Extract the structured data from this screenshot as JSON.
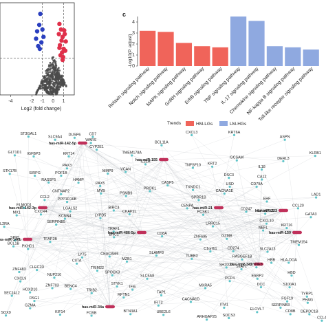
{
  "chart_data": [
    {
      "type": "scatter",
      "panel": "",
      "xlabel": "Log2 (fold change)",
      "ylabel": "",
      "xticks": [
        -4,
        -2,
        -1,
        0,
        1
      ],
      "xlim": [
        -5,
        2
      ],
      "ylim": [
        0,
        10
      ],
      "threshold_x": [
        -1,
        1
      ],
      "threshold_y": 4,
      "colors": {
        "up": "#e0304a",
        "down": "#2a3fbf",
        "ns": "#4a4a4a"
      },
      "series": [
        {
          "group": "down",
          "x": [
            -1.2,
            -1.5,
            -1.3,
            -0.9,
            -1.1,
            -1.6,
            -1.4,
            -1.0,
            -1.25
          ],
          "y": [
            8.8,
            6.9,
            7.6,
            6.3,
            5.7,
            6.1,
            5.3,
            7.1,
            5.0
          ]
        },
        {
          "group": "up",
          "x": [
            0.6,
            0.75,
            1.05,
            0.9,
            0.55,
            1.2,
            0.8,
            1.0,
            0.65,
            1.15,
            0.85,
            0.7,
            0.95,
            1.1,
            0.6,
            0.9
          ],
          "y": [
            7.7,
            7.1,
            7.0,
            6.3,
            6.6,
            5.8,
            5.9,
            5.0,
            5.4,
            4.8,
            4.6,
            4.3,
            4.1,
            6.6,
            5.1,
            3.8
          ]
        }
      ]
    },
    {
      "type": "bar",
      "panel": "c",
      "ylabel": "-Log10(P. adjust)",
      "ylim": [
        0,
        4.5
      ],
      "yticks": [
        0,
        1,
        2,
        3,
        4
      ],
      "categories": [
        "Relaxin signaling pathway",
        "Notch signaling pathway",
        "MAPK signaling pathway",
        "GnRH signaling pathway",
        "ErbB signaling pathway",
        "TNF signaling pathway",
        "IL-17 signaling pathway",
        "Chemokine signaling pathway",
        "NF-kappa B signaling pathway",
        "Toll-like receptor signaling pathway"
      ],
      "values": [
        3.2,
        3.1,
        2.1,
        1.8,
        1.7,
        4.5,
        4.1,
        1.8,
        1.7,
        1.5
      ],
      "groups": [
        "HM-LGs",
        "HM-LGs",
        "HM-LGs",
        "HM-LGs",
        "HM-LGs",
        "LM-HGs",
        "LM-HGs",
        "LM-HGs",
        "LM-HGs",
        "LM-HGs"
      ],
      "legend": {
        "title": "Trends",
        "items": [
          {
            "name": "HM-LGs",
            "color": "#f0645a"
          },
          {
            "name": "LM-HGs",
            "color": "#8fa9e0"
          }
        ],
        "placement": "bottom"
      }
    },
    {
      "type": "network",
      "panel": "",
      "hub_color": "#c0305a",
      "node_color": "#5fc5c9",
      "hubs": [
        "has-miR-142-5p",
        "has-miR-142-3p",
        "has-miR-146b",
        "has-miR-155",
        "has-miR-21",
        "has-miR-486-5p",
        "has-miR-223",
        "has-miR-150",
        "has-miR-34a",
        "has-miR-342"
      ],
      "genes": [
        "DERL3",
        "TAP1",
        "USD",
        "STYK1",
        "CASP5",
        "C1orf61",
        "TXNDC1",
        "CD8B",
        "BENC4",
        "TYRP1",
        "POF1B",
        "CCL2",
        "ITM1",
        "SEC14L2",
        "BCL11A",
        "MX1",
        "CXCL3",
        "CKAP2L",
        "LYPD5",
        "DSC3",
        "SOX9",
        "SYNE3",
        "CCL20",
        "PPP1R16B",
        "ZNF483",
        "CCL4",
        "KCNN4",
        "CENPA",
        "CD247",
        "BCL1B",
        "HAMP",
        "TMEM154",
        "ASPN",
        "RASGEF1B",
        "KRT6A",
        "SPOCK3",
        "IFIT2",
        "STK17B",
        "MXRA5",
        "DSG1",
        "PROK1",
        "CD79A",
        "BIRC3",
        "FOSB",
        "KLRB1",
        "ZNF695",
        "GZMA",
        "ELOVL7",
        "CLEC2D",
        "GALNT13",
        "FGF19",
        "CXCR4",
        "ST3GAL1",
        "SERPINB3",
        "CEACAM6",
        "KRT14",
        "IL18",
        "GATA3",
        "SLAMF8",
        "DUSP6",
        "ELMOD1",
        "CACNA1E",
        "SH2D2A",
        "CXCL9",
        "PAX3",
        "SLC9A4",
        "MZB1",
        "CD274",
        "LY75",
        "IGFBP3",
        "SPP1",
        "TNFSF10",
        "PCSK1",
        "NUP210",
        "STAT1",
        "LGALS2",
        "GZMB",
        "HOXD10",
        "PAX5",
        "MMP9",
        "TUBB3",
        "ESRP2",
        "GLT1D1",
        "HBD",
        "DEPDC1B",
        "HBB",
        "CXCL10",
        "TRAF1",
        "CYP2E1",
        "GCSAM",
        "PHAG",
        "LAD1",
        "SERPINB5",
        "RASSF5",
        "LRRC15",
        "BNC2",
        "PKHD1",
        "CD7",
        "CIITA",
        "IL21R",
        "S100A1",
        "TRIM22",
        "CD8A",
        "PCP4",
        "KIF14",
        "MYB",
        "ARHGAP25",
        "SLC2A13",
        "SIRPG",
        "IL2RA",
        "WARS",
        "IFI6",
        "DCC",
        "PSMB9",
        "EHF",
        "TRIB2",
        "BTN3A1",
        "UBE2L6",
        "KRT16",
        "CA12",
        "VCAN",
        "SOCS3",
        "CNTNAP2",
        "SPRR1B",
        "KRT2",
        "TMEM178A",
        "ZNF703",
        "RFTN1",
        "TFAP2B",
        "SLC5A8",
        "NEFL",
        "HLA-DOA",
        "CACNA1D"
      ]
    }
  ]
}
